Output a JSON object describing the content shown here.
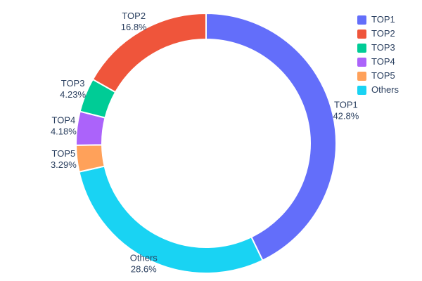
{
  "chart_data": {
    "type": "pie",
    "title": "",
    "hole": 0.8,
    "labels": [
      "TOP1",
      "TOP2",
      "TOP3",
      "TOP4",
      "TOP5",
      "Others"
    ],
    "values": [
      42.8,
      16.8,
      4.23,
      4.18,
      3.29,
      28.6
    ],
    "display_percents": [
      "42.8%",
      "16.8%",
      "4.23%",
      "4.18%",
      "3.29%",
      "28.6%"
    ],
    "colors": [
      "#636efa",
      "#ef553b",
      "#00cc96",
      "#ab63fa",
      "#ffa15a",
      "#19d3f3"
    ],
    "clockwise_order": [
      "TOP1",
      "Others",
      "TOP5",
      "TOP4",
      "TOP3",
      "TOP2"
    ],
    "start_angle_deg": 0,
    "labels_position": "outside",
    "legend": {
      "position": "top-right",
      "entries": [
        "TOP1",
        "TOP2",
        "TOP3",
        "TOP4",
        "TOP5",
        "Others"
      ]
    },
    "text_color": "#2a3f5f",
    "background": "#ffffff",
    "slice_border_color": "#ffffff"
  }
}
